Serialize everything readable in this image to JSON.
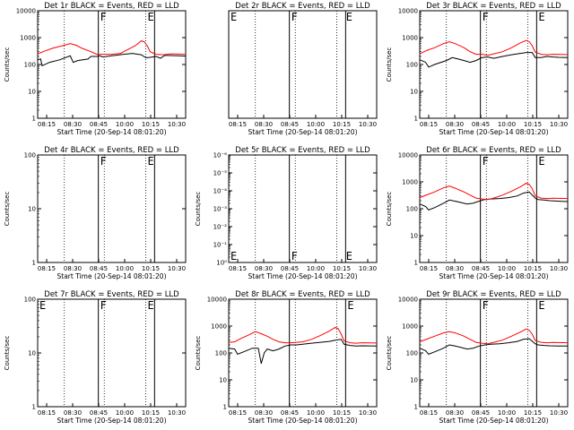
{
  "chart_data": [
    {
      "type": "line",
      "title": "Det 1r BLACK = Events, RED = LLD",
      "ylabel": "Counts/sec",
      "xlabel": "Start Time (20-Sep-14 08:01:20)",
      "scale": "log",
      "ylim": [
        1,
        10000
      ],
      "y_ticks": [
        "10000",
        "1000",
        "100",
        "10",
        "1"
      ],
      "x_ticks": [
        "08:15",
        "08:30",
        "08:45",
        "10:00",
        "10:15",
        "10:30"
      ],
      "markers": [
        {
          "text": "F",
          "at": "left-top",
          "pos": 0.41
        },
        {
          "text": "E",
          "at": "left-top",
          "pos": 0.73
        }
      ],
      "series": [
        {
          "color": "#000000",
          "x": [
            0,
            2,
            3,
            8,
            15,
            22,
            24,
            27,
            34,
            36,
            40,
            42,
            44,
            50,
            58,
            64,
            70,
            73,
            75,
            80,
            83,
            86,
            90,
            95,
            100
          ],
          "y": [
            150,
            160,
            90,
            120,
            150,
            210,
            120,
            140,
            160,
            200,
            200,
            210,
            190,
            210,
            240,
            260,
            230,
            180,
            180,
            200,
            170,
            220,
            215,
            210,
            205
          ]
        },
        {
          "color": "#ff0000",
          "x": [
            0,
            5,
            10,
            18,
            22,
            26,
            30,
            36,
            40,
            42,
            46,
            50,
            56,
            60,
            66,
            70,
            72,
            74,
            76,
            80,
            85,
            90,
            100
          ],
          "y": [
            250,
            320,
            400,
            520,
            600,
            520,
            400,
            300,
            240,
            240,
            240,
            240,
            260,
            340,
            500,
            760,
            700,
            500,
            300,
            240,
            230,
            250,
            240
          ]
        }
      ]
    },
    {
      "type": "line",
      "title": "Det 2r BLACK = Events, RED = LLD",
      "ylabel": "",
      "xlabel": "Start Time (20-Sep-14 08:01:20)",
      "scale": "log",
      "ylim": [
        1,
        10000
      ],
      "y_ticks": [],
      "x_ticks": [
        "08:15",
        "08:30",
        "08:45",
        "10:00",
        "10:15",
        "10:30"
      ],
      "markers": [
        {
          "text": "E",
          "at": "left-top",
          "pos": 0.0
        },
        {
          "text": "F",
          "at": "left-top",
          "pos": 0.41
        },
        {
          "text": "E",
          "at": "left-top",
          "pos": 0.78
        }
      ],
      "series": []
    },
    {
      "type": "line",
      "title": "Det 3r BLACK = Events, RED = LLD",
      "ylabel": "Counts/sec",
      "xlabel": "Start Time (20-Sep-14 08:01:20)",
      "scale": "log",
      "ylim": [
        1,
        10000
      ],
      "y_ticks": [
        "10000",
        "1000",
        "100",
        "10",
        "1"
      ],
      "x_ticks": [
        "08:15",
        "08:30",
        "08:45",
        "10:00",
        "10:15",
        "10:30"
      ],
      "markers": [
        {
          "text": "F",
          "at": "left-top",
          "pos": 0.41
        },
        {
          "text": "E",
          "at": "left-top",
          "pos": 0.79
        }
      ],
      "series": [
        {
          "color": "#000000",
          "x": [
            0,
            4,
            6,
            10,
            18,
            22,
            26,
            30,
            34,
            38,
            42,
            46,
            50,
            56,
            62,
            68,
            72,
            76,
            78,
            82,
            86,
            90,
            94,
            100
          ],
          "y": [
            150,
            120,
            80,
            100,
            140,
            180,
            160,
            140,
            120,
            140,
            180,
            190,
            170,
            200,
            230,
            260,
            280,
            280,
            180,
            180,
            200,
            190,
            185,
            180
          ]
        },
        {
          "color": "#ff0000",
          "x": [
            0,
            5,
            10,
            16,
            20,
            24,
            30,
            34,
            38,
            42,
            46,
            50,
            56,
            62,
            68,
            72,
            74,
            76,
            78,
            82,
            86,
            90,
            100
          ],
          "y": [
            250,
            340,
            420,
            600,
            700,
            600,
            420,
            300,
            240,
            240,
            220,
            250,
            300,
            420,
            640,
            780,
            700,
            500,
            290,
            240,
            230,
            240,
            235
          ]
        }
      ]
    },
    {
      "type": "line",
      "title": "Det 4r BLACK = Events, RED = LLD",
      "ylabel": "Counts/sec",
      "xlabel": "Start Time (20-Sep-14 08:01:20)",
      "scale": "log",
      "ylim": [
        1,
        100
      ],
      "y_ticks": [
        "100",
        "10",
        "1"
      ],
      "x_ticks": [
        "08:15",
        "08:30",
        "08:45",
        "10:00",
        "10:15",
        "10:30"
      ],
      "markers": [
        {
          "text": "F",
          "at": "left-top",
          "pos": 0.41
        },
        {
          "text": "E",
          "at": "left-top",
          "pos": 0.73
        }
      ],
      "series": []
    },
    {
      "type": "line",
      "title": "Det 5r BLACK = Events, RED = LLD",
      "ylabel": "Counts/sec",
      "xlabel": "Start Time (20-Sep-14 08:01:20)",
      "scale": "log",
      "ylim": [
        1e-06,
        1
      ],
      "y_ticks": [
        "10⁻⁶",
        "10⁻⁵",
        "10⁻⁴",
        "10⁻³",
        "10⁻²",
        "10⁻¹",
        "10⁰"
      ],
      "x_ticks": [
        "08:15",
        "08:30",
        "08:45",
        "10:00",
        "10:15",
        "10:30"
      ],
      "markers": [
        {
          "text": "E",
          "at": "left-bottom",
          "pos": 0.0
        },
        {
          "text": "F",
          "at": "left-bottom",
          "pos": 0.41
        },
        {
          "text": "E",
          "at": "left-bottom",
          "pos": 0.78
        }
      ],
      "series": []
    },
    {
      "type": "line",
      "title": "Det 6r BLACK = Events, RED = LLD",
      "ylabel": "Counts/sec",
      "xlabel": "Start Time (20-Sep-14 08:01:20)",
      "scale": "log",
      "ylim": [
        1,
        10000
      ],
      "y_ticks": [
        "10000",
        "1000",
        "100",
        "10",
        "1"
      ],
      "x_ticks": [
        "08:15",
        "08:30",
        "08:45",
        "10:00",
        "10:15",
        "10:30"
      ],
      "markers": [
        {
          "text": "F",
          "at": "left-top",
          "pos": 0.41
        },
        {
          "text": "E",
          "at": "left-top",
          "pos": 0.79
        }
      ],
      "series": [
        {
          "color": "#000000",
          "x": [
            0,
            4,
            6,
            10,
            16,
            20,
            24,
            28,
            32,
            36,
            40,
            44,
            48,
            54,
            60,
            66,
            70,
            74,
            78,
            80,
            84,
            88,
            94,
            100
          ],
          "y": [
            150,
            120,
            90,
            110,
            160,
            210,
            190,
            170,
            150,
            160,
            190,
            220,
            230,
            240,
            260,
            300,
            380,
            420,
            250,
            220,
            210,
            200,
            190,
            185
          ]
        },
        {
          "color": "#ff0000",
          "x": [
            0,
            5,
            10,
            16,
            20,
            24,
            30,
            34,
            38,
            42,
            46,
            50,
            56,
            62,
            68,
            72,
            74,
            76,
            78,
            82,
            86,
            90,
            100
          ],
          "y": [
            260,
            330,
            420,
            600,
            700,
            580,
            420,
            320,
            250,
            230,
            220,
            250,
            320,
            450,
            650,
            900,
            800,
            560,
            300,
            250,
            240,
            245,
            240
          ]
        }
      ]
    },
    {
      "type": "line",
      "title": "Det 7r BLACK = Events, RED = LLD",
      "ylabel": "Counts/sec",
      "xlabel": "Start Time (20-Sep-14 08:01:20)",
      "scale": "log",
      "ylim": [
        1,
        100
      ],
      "y_ticks": [
        "100",
        "10",
        "1"
      ],
      "x_ticks": [
        "08:15",
        "08:30",
        "08:45",
        "10:00",
        "10:15",
        "10:30"
      ],
      "markers": [
        {
          "text": "E",
          "at": "left-top",
          "pos": 0.0
        },
        {
          "text": "F",
          "at": "left-top",
          "pos": 0.41
        },
        {
          "text": "E",
          "at": "left-top",
          "pos": 0.73
        }
      ],
      "series": []
    },
    {
      "type": "line",
      "title": "Det 8r BLACK = Events, RED = LLD",
      "ylabel": "Counts/sec",
      "xlabel": "Start Time (20-Sep-14 08:01:20)",
      "scale": "log",
      "ylim": [
        1,
        10000
      ],
      "y_ticks": [
        "10000",
        "1000",
        "100",
        "10",
        "1"
      ],
      "x_ticks": [
        "08:15",
        "08:30",
        "08:45",
        "10:00",
        "10:15",
        "10:30"
      ],
      "markers": [
        {
          "text": "E",
          "at": "left-top",
          "pos": 0.79
        }
      ],
      "series": [
        {
          "color": "#000000",
          "x": [
            0,
            4,
            6,
            10,
            16,
            20,
            22,
            24,
            26,
            28,
            30,
            34,
            38,
            42,
            46,
            50,
            56,
            62,
            68,
            72,
            76,
            78,
            82,
            86,
            90,
            100
          ],
          "y": [
            150,
            140,
            90,
            110,
            150,
            150,
            40,
            100,
            140,
            130,
            120,
            140,
            180,
            200,
            200,
            210,
            230,
            250,
            270,
            300,
            320,
            210,
            190,
            180,
            185,
            180
          ]
        },
        {
          "color": "#ff0000",
          "x": [
            0,
            4,
            8,
            14,
            18,
            22,
            26,
            30,
            34,
            38,
            42,
            46,
            50,
            56,
            62,
            68,
            72,
            74,
            76,
            78,
            82,
            86,
            90,
            100
          ],
          "y": [
            250,
            260,
            340,
            480,
            620,
            520,
            420,
            320,
            260,
            240,
            240,
            250,
            260,
            320,
            450,
            650,
            900,
            800,
            500,
            280,
            240,
            230,
            240,
            235
          ]
        }
      ]
    },
    {
      "type": "line",
      "title": "Det 9r BLACK = Events, RED = LLD",
      "ylabel": "Counts/sec",
      "xlabel": "Start Time (20-Sep-14 08:01:20)",
      "scale": "log",
      "ylim": [
        1,
        10000
      ],
      "y_ticks": [
        "10000",
        "1000",
        "100",
        "10",
        "1"
      ],
      "x_ticks": [
        "08:15",
        "08:30",
        "08:45",
        "10:00",
        "10:15",
        "10:30"
      ],
      "markers": [
        {
          "text": "F",
          "at": "left-top",
          "pos": 0.41
        },
        {
          "text": "E",
          "at": "left-top",
          "pos": 0.79
        }
      ],
      "series": [
        {
          "color": "#000000",
          "x": [
            0,
            4,
            6,
            10,
            16,
            20,
            24,
            28,
            32,
            36,
            40,
            44,
            48,
            54,
            60,
            66,
            70,
            74,
            78,
            80,
            84,
            88,
            94,
            100
          ],
          "y": [
            150,
            120,
            90,
            110,
            150,
            200,
            180,
            160,
            140,
            150,
            180,
            200,
            210,
            220,
            240,
            270,
            320,
            340,
            220,
            200,
            190,
            185,
            180,
            180
          ]
        },
        {
          "color": "#ff0000",
          "x": [
            0,
            5,
            10,
            16,
            20,
            24,
            30,
            34,
            38,
            42,
            46,
            50,
            56,
            62,
            68,
            72,
            74,
            76,
            78,
            82,
            86,
            90,
            100
          ],
          "y": [
            260,
            330,
            420,
            560,
            620,
            560,
            420,
            320,
            250,
            230,
            220,
            250,
            300,
            420,
            600,
            780,
            700,
            500,
            290,
            250,
            240,
            245,
            240
          ]
        }
      ]
    }
  ]
}
